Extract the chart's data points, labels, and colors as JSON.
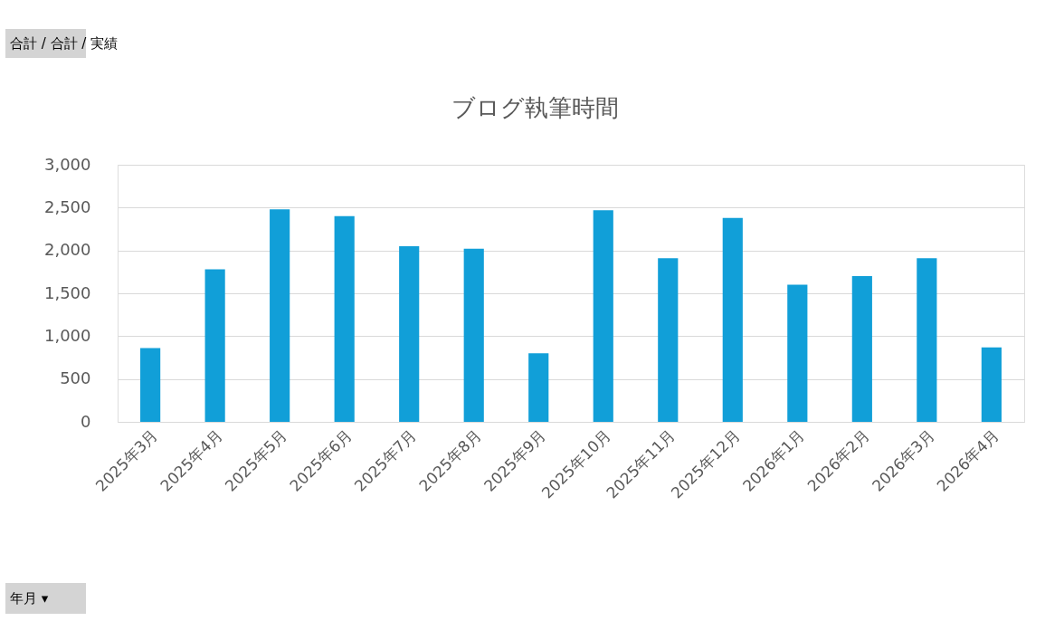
{
  "chart_data": {
    "type": "bar",
    "title": "ブログ執筆時間",
    "categories": [
      "2025年3月",
      "2025年4月",
      "2025年5月",
      "2025年6月",
      "2025年7月",
      "2025年8月",
      "2025年9月",
      "2025年10月",
      "2025年11月",
      "2025年12月",
      "2026年1月",
      "2026年2月",
      "2026年3月",
      "2026年4月"
    ],
    "values": [
      860,
      1780,
      2480,
      2400,
      2050,
      2020,
      800,
      2470,
      1910,
      2380,
      1600,
      1700,
      1910,
      870
    ],
    "color": "#119fd8",
    "ylim": [
      0,
      3000
    ],
    "yticks": [
      0,
      500,
      {
        "value": 1000,
        "label": "1,000"
      },
      {
        "value": 1500,
        "label": "1,500"
      },
      {
        "value": 2000,
        "label": "2,000"
      },
      {
        "value": 2500,
        "label": "2,500"
      },
      {
        "value": 3000,
        "label": "3,000"
      }
    ],
    "grid": "y",
    "annotations": [
      "合計 / 合計 / 実績",
      "年月 ▾"
    ]
  }
}
